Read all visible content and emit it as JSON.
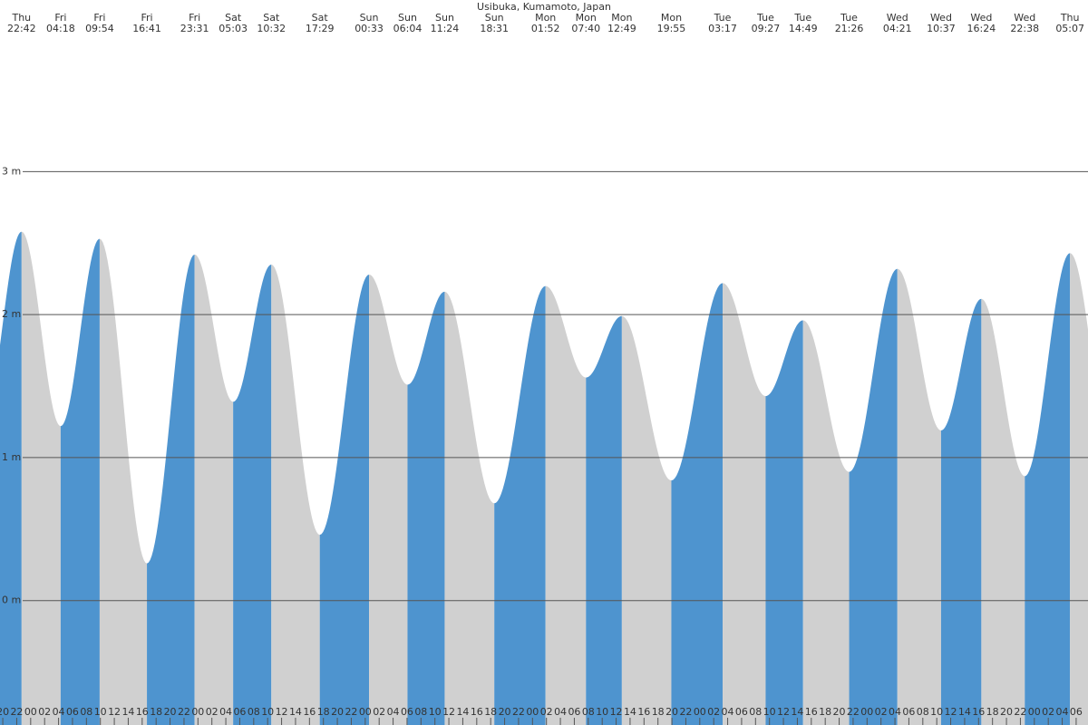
{
  "chart_data": {
    "type": "tide",
    "title": "Usibuka, Kumamoto, Japan",
    "days": [
      "Thu",
      "Fri",
      "Fri",
      "Fri",
      "Fri",
      "Sat",
      "Sat",
      "Sat",
      "Sun",
      "Sun",
      "Sun",
      "Sun",
      "Mon",
      "Mon",
      "Mon",
      "Mon",
      "Tue",
      "Tue",
      "Tue",
      "Tue",
      "Wed",
      "Wed",
      "Wed",
      "Wed",
      "Thu"
    ],
    "times": [
      "22:42",
      "04:18",
      "09:54",
      "16:41",
      "23:31",
      "05:03",
      "10:32",
      "17:29",
      "00:33",
      "06:04",
      "11:24",
      "18:31",
      "01:52",
      "07:40",
      "12:49",
      "19:55",
      "03:17",
      "09:27",
      "14:49",
      "21:26",
      "04:21",
      "10:37",
      "16:24",
      "22:38",
      "05:07"
    ],
    "x": [
      22.7,
      28.3,
      33.9,
      40.68,
      47.52,
      53.05,
      58.53,
      65.48,
      72.55,
      78.07,
      83.4,
      90.52,
      97.87,
      103.67,
      108.82,
      115.92,
      123.28,
      129.45,
      134.82,
      141.43,
      148.35,
      154.62,
      160.4,
      166.63,
      173.12
    ],
    "values": [
      2.58,
      1.22,
      2.53,
      0.26,
      2.42,
      1.39,
      2.35,
      0.46,
      2.28,
      1.51,
      2.16,
      0.68,
      2.2,
      1.56,
      1.99,
      0.84,
      2.22,
      1.43,
      1.96,
      0.9,
      2.32,
      1.19,
      2.11,
      0.87,
      2.43
    ],
    "colors": {
      "rising": "#4e94cf",
      "falling": "#d0d0d0"
    },
    "xlim": [
      19.6,
      175.7
    ],
    "ylim": [
      -0.87,
      4.2
    ],
    "yticks": [
      {
        "value": 0,
        "label": "0 m"
      },
      {
        "value": 1,
        "label": "1 m"
      },
      {
        "value": 2,
        "label": "2 m"
      },
      {
        "value": 3,
        "label": "3 m"
      }
    ],
    "grid": true,
    "xticks": [
      {
        "value": 20,
        "label": "20"
      },
      {
        "value": 22,
        "label": "22"
      },
      {
        "value": 24,
        "label": "00"
      },
      {
        "value": 26,
        "label": "02"
      },
      {
        "value": 28,
        "label": "04"
      },
      {
        "value": 30,
        "label": "06"
      },
      {
        "value": 32,
        "label": "08"
      },
      {
        "value": 34,
        "label": "10"
      },
      {
        "value": 36,
        "label": "12"
      },
      {
        "value": 38,
        "label": "14"
      },
      {
        "value": 40,
        "label": "16"
      },
      {
        "value": 42,
        "label": "18"
      },
      {
        "value": 44,
        "label": "20"
      },
      {
        "value": 46,
        "label": "22"
      },
      {
        "value": 48,
        "label": "00"
      },
      {
        "value": 50,
        "label": "02"
      },
      {
        "value": 52,
        "label": "04"
      },
      {
        "value": 54,
        "label": "06"
      },
      {
        "value": 56,
        "label": "08"
      },
      {
        "value": 58,
        "label": "10"
      },
      {
        "value": 60,
        "label": "12"
      },
      {
        "value": 62,
        "label": "14"
      },
      {
        "value": 64,
        "label": "16"
      },
      {
        "value": 66,
        "label": "18"
      },
      {
        "value": 68,
        "label": "20"
      },
      {
        "value": 70,
        "label": "22"
      },
      {
        "value": 72,
        "label": "00"
      },
      {
        "value": 74,
        "label": "02"
      },
      {
        "value": 76,
        "label": "04"
      },
      {
        "value": 78,
        "label": "06"
      },
      {
        "value": 80,
        "label": "08"
      },
      {
        "value": 82,
        "label": "10"
      },
      {
        "value": 84,
        "label": "12"
      },
      {
        "value": 86,
        "label": "14"
      },
      {
        "value": 88,
        "label": "16"
      },
      {
        "value": 90,
        "label": "18"
      },
      {
        "value": 92,
        "label": "20"
      },
      {
        "value": 94,
        "label": "22"
      },
      {
        "value": 96,
        "label": "00"
      },
      {
        "value": 98,
        "label": "02"
      },
      {
        "value": 100,
        "label": "04"
      },
      {
        "value": 102,
        "label": "06"
      },
      {
        "value": 104,
        "label": "08"
      },
      {
        "value": 106,
        "label": "10"
      },
      {
        "value": 108,
        "label": "12"
      },
      {
        "value": 110,
        "label": "14"
      },
      {
        "value": 112,
        "label": "16"
      },
      {
        "value": 114,
        "label": "18"
      },
      {
        "value": 116,
        "label": "20"
      },
      {
        "value": 118,
        "label": "22"
      },
      {
        "value": 120,
        "label": "00"
      },
      {
        "value": 122,
        "label": "02"
      },
      {
        "value": 124,
        "label": "04"
      },
      {
        "value": 126,
        "label": "06"
      },
      {
        "value": 128,
        "label": "08"
      },
      {
        "value": 130,
        "label": "10"
      },
      {
        "value": 132,
        "label": "12"
      },
      {
        "value": 134,
        "label": "14"
      },
      {
        "value": 136,
        "label": "16"
      },
      {
        "value": 138,
        "label": "18"
      },
      {
        "value": 140,
        "label": "20"
      },
      {
        "value": 142,
        "label": "22"
      },
      {
        "value": 144,
        "label": "00"
      },
      {
        "value": 146,
        "label": "02"
      },
      {
        "value": 148,
        "label": "04"
      },
      {
        "value": 150,
        "label": "06"
      },
      {
        "value": 152,
        "label": "08"
      },
      {
        "value": 154,
        "label": "10"
      },
      {
        "value": 156,
        "label": "12"
      },
      {
        "value": 158,
        "label": "14"
      },
      {
        "value": 160,
        "label": "16"
      },
      {
        "value": 162,
        "label": "18"
      },
      {
        "value": 164,
        "label": "20"
      },
      {
        "value": 166,
        "label": "22"
      },
      {
        "value": 168,
        "label": "00"
      },
      {
        "value": 170,
        "label": "02"
      },
      {
        "value": 172,
        "label": "04"
      },
      {
        "value": 174,
        "label": "06"
      }
    ]
  }
}
